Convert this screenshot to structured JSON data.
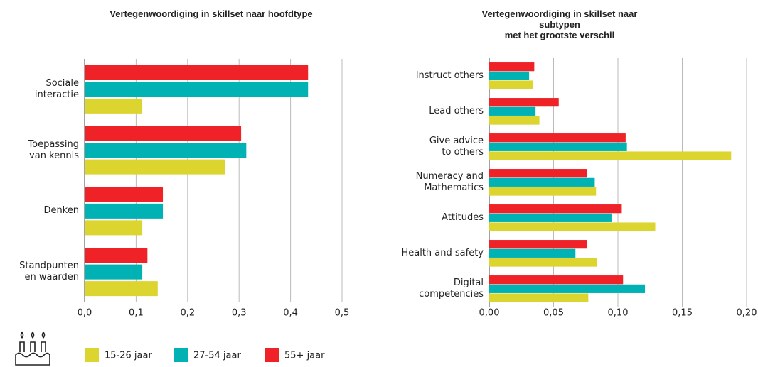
{
  "chart_data": [
    {
      "type": "bar",
      "orientation": "horizontal",
      "title": "Vertegenwoordiging in skillset naar hoofdtype",
      "categories": [
        "Sociale\ninteractie",
        "Toepassing\nvan kennis",
        "Denken",
        "Standpunten\nen waarden"
      ],
      "series": [
        {
          "name": "55+ jaar",
          "color": "#ee2227",
          "values": [
            0.434,
            0.304,
            0.152,
            0.122
          ]
        },
        {
          "name": "27-54 jaar",
          "color": "#00b2b4",
          "values": [
            0.434,
            0.314,
            0.152,
            0.112
          ]
        },
        {
          "name": "15-26 jaar",
          "color": "#dcd42f",
          "values": [
            0.112,
            0.273,
            0.112,
            0.142
          ]
        }
      ],
      "xlim": [
        0,
        0.5
      ],
      "xticks": [
        {
          "value": 0,
          "label": "0,0"
        },
        {
          "value": 0.1,
          "label": "0,1"
        },
        {
          "value": 0.2,
          "label": "0,2"
        },
        {
          "value": 0.3,
          "label": "0,3"
        },
        {
          "value": 0.4,
          "label": "0,4"
        },
        {
          "value": 0.5,
          "label": "0,5"
        }
      ],
      "grid": true
    },
    {
      "type": "bar",
      "orientation": "horizontal",
      "title": "Vertegenwoordiging in skillset naar subtypen\nmet het grootste verschil",
      "categories": [
        "Instruct others",
        "Lead others",
        "Give advice\nto others",
        "Numeracy and\nMathematics",
        "Attitudes",
        "Health and safety",
        "Digital\ncompetencies"
      ],
      "series": [
        {
          "name": "55+ jaar",
          "color": "#ee2227",
          "values": [
            0.035,
            0.054,
            0.106,
            0.076,
            0.103,
            0.076,
            0.104
          ]
        },
        {
          "name": "27-54 jaar",
          "color": "#00b2b4",
          "values": [
            0.031,
            0.036,
            0.107,
            0.082,
            0.095,
            0.067,
            0.121
          ]
        },
        {
          "name": "15-26 jaar",
          "color": "#dcd42f",
          "values": [
            0.034,
            0.039,
            0.188,
            0.083,
            0.129,
            0.084,
            0.077
          ]
        }
      ],
      "xlim": [
        0,
        0.2
      ],
      "xticks": [
        {
          "value": 0,
          "label": "0,00"
        },
        {
          "value": 0.05,
          "label": "0,05"
        },
        {
          "value": 0.1,
          "label": "0,10"
        },
        {
          "value": 0.15,
          "label": "0,15"
        },
        {
          "value": 0.2,
          "label": "0,20"
        }
      ],
      "grid": true
    }
  ]
}
